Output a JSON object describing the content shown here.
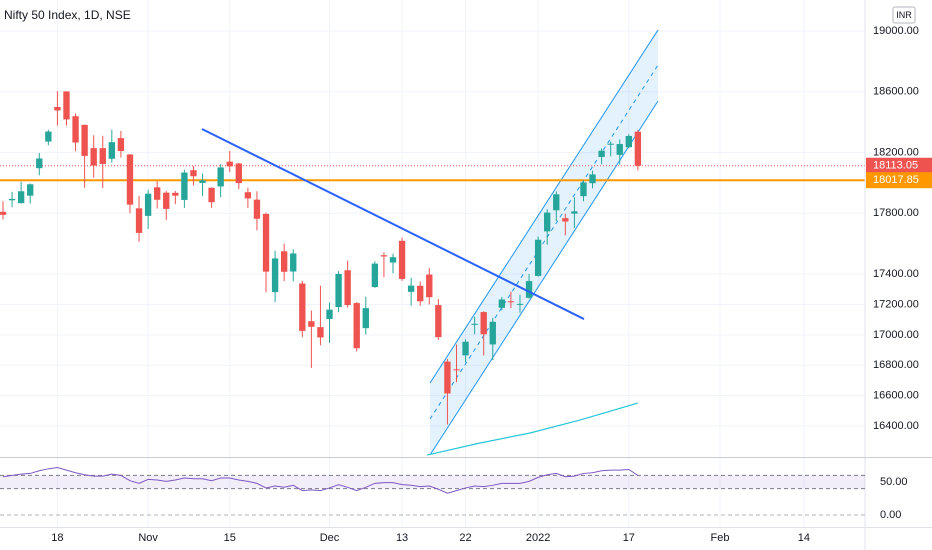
{
  "chart_data": {
    "type": "candlestick",
    "title": "Nifty 50 Index, 1D, NSE",
    "currency": "INR",
    "up_color": "#26a69a",
    "down_color": "#ef5350",
    "open": [
      17810,
      17886,
      17867,
      17916,
      18097,
      18272,
      18500,
      18602,
      18439,
      18382,
      18229,
      18229,
      18159,
      18295,
      18187,
      17833,
      17783,
      17971,
      17936,
      17935,
      17888,
      18084,
      18000,
      17968,
      17977,
      18140,
      18128,
      17939,
      17890,
      17796,
      17281,
      17550,
      17417,
      17338,
      17090,
      17051,
      17104,
      17183,
      17425,
      17209,
      17044,
      17315,
      17524,
      17476,
      17619,
      17283,
      17323,
      17397,
      17196,
      16824,
      16773,
      16865,
      17066,
      17150,
      16937,
      17178,
      17221,
      17202,
      17244,
      17388,
      17681,
      17820,
      17768,
      17798,
      17913,
      17998,
      18171,
      18257,
      18185,
      18235,
      18337
    ],
    "high": [
      17880,
      17941,
      18008,
      17996,
      18197,
      18350,
      18604,
      18604,
      18458,
      18384,
      18314,
      18310,
      18350,
      18342,
      18190,
      17915,
      17954,
      18012,
      17947,
      17947,
      18087,
      18112,
      18061,
      17971,
      18123,
      18210,
      18132,
      17969,
      17945,
      17805,
      17553,
      17600,
      17564,
      17355,
      17160,
      17324,
      17213,
      17420,
      17489,
      17216,
      17251,
      17484,
      17543,
      17534,
      17640,
      17376,
      17351,
      17440,
      17236,
      16841,
      16937,
      16971,
      17119,
      17155,
      17112,
      17250,
      17285,
      17264,
      17400,
      17647,
      17827,
      17944,
      17797,
      17905,
      18017,
      18081,
      18227,
      18272,
      18286,
      18321,
      18350
    ],
    "low": [
      17760,
      17840,
      17864,
      17865,
      18050,
      18248,
      18377,
      18377,
      18209,
      17968,
      18034,
      17966,
      18134,
      18167,
      17800,
      17613,
      17697,
      17832,
      17757,
      17860,
      17836,
      17983,
      17915,
      17836,
      17905,
      18071,
      17959,
      17836,
      17688,
      17280,
      17216,
      17354,
      17351,
      16985,
      16782,
      16931,
      16947,
      17149,
      17180,
      16891,
      17003,
      17308,
      17379,
      17405,
      17355,
      17192,
      17192,
      17200,
      16966,
      16410,
      16688,
      16819,
      17004,
      16864,
      16834,
      17161,
      17176,
      17146,
      17238,
      17383,
      17593,
      17749,
      17655,
      17704,
      17879,
      17964,
      18123,
      18175,
      18120,
      18228,
      18083
    ],
    "close": [
      17790,
      17895,
      17945,
      17991,
      18161,
      18338,
      18477,
      18418,
      18266,
      18178,
      18114,
      18125,
      18268,
      18210,
      17857,
      17671,
      17929,
      17889,
      17829,
      17916,
      18068,
      18044,
      18017,
      17873,
      18102,
      18109,
      17999,
      17898,
      17764,
      17416,
      17503,
      17415,
      17536,
      17026,
      17053,
      16983,
      17166,
      17401,
      17196,
      16912,
      17176,
      17469,
      17516,
      17511,
      17368,
      17324,
      17221,
      17248,
      16985,
      16614,
      16771,
      16955,
      17073,
      17004,
      17086,
      17233,
      17214,
      17204,
      17354,
      17626,
      17805,
      17925,
      17746,
      17813,
      18003,
      18056,
      18212,
      18258,
      18256,
      18309,
      18113
    ],
    "xlim": [
      -0.33,
      95.04
    ],
    "ylim": [
      16196,
      19204
    ],
    "xticks": [
      {
        "value": 6,
        "label": "18"
      },
      {
        "value": 16,
        "label": "Nov"
      },
      {
        "value": 25,
        "label": "15"
      },
      {
        "value": 36,
        "label": "Dec"
      },
      {
        "value": 44,
        "label": "13"
      },
      {
        "value": 51,
        "label": "22"
      },
      {
        "value": 59,
        "label": "2022"
      },
      {
        "value": 69,
        "label": "17"
      },
      {
        "value": 79.05,
        "label": "Feb"
      },
      {
        "value": 88.3,
        "label": "14"
      }
    ],
    "yticks": [
      {
        "value": 19000,
        "label": "19000.00"
      },
      {
        "value": 18600,
        "label": "18600.00"
      },
      {
        "value": 18200,
        "label": "18200.00"
      },
      {
        "value": 17800,
        "label": "17800.00"
      },
      {
        "value": 17400,
        "label": "17400.00"
      },
      {
        "value": 17200,
        "label": "17200.00"
      },
      {
        "value": 17000,
        "label": "17000.00"
      },
      {
        "value": 16800,
        "label": "16800.00"
      },
      {
        "value": 16600,
        "label": "16600.00"
      },
      {
        "value": 16400,
        "label": "16400.00"
      }
    ],
    "price_lines": [
      {
        "value": 18113.05,
        "color": "#ef5350",
        "style": "dotted"
      },
      {
        "value": 18017.85,
        "color": "#ff9800",
        "style": "solid"
      }
    ],
    "trendline": {
      "x": [
        21.94,
        64.06
      ],
      "y": [
        18355,
        17104
      ],
      "color": "#2962ff"
    },
    "channel": {
      "x": [
        47.08,
        72.22
      ],
      "upper": [
        16683,
        19007
      ],
      "middle": [
        16446,
        18776
      ],
      "lower": [
        16209,
        18539
      ],
      "color": "#2196f3"
    },
    "moving_average": {
      "x": [
        46.75,
        52.6,
        58.1,
        63.6,
        70
      ],
      "values": [
        16209,
        16288,
        16354,
        16439,
        16551
      ],
      "color": "#26c6da"
    },
    "rsi": {
      "values": [
        58,
        60,
        62,
        63,
        67,
        70,
        72,
        68,
        64,
        61,
        59,
        59,
        62,
        60,
        52,
        48,
        54,
        53,
        51,
        53,
        56,
        55,
        55,
        52,
        56,
        56,
        53,
        51,
        48,
        41,
        44,
        42,
        45,
        37,
        38,
        37,
        41,
        46,
        42,
        37,
        42,
        48,
        49,
        49,
        46,
        45,
        43,
        44,
        39,
        33,
        37,
        41,
        44,
        43,
        45,
        48,
        48,
        48,
        51,
        57,
        61,
        63,
        58,
        59,
        63,
        64,
        67,
        68,
        68,
        69,
        60
      ],
      "ylim": [
        -18.2,
        86.4
      ],
      "bands": [
        40,
        60
      ],
      "color": "#7e57c2",
      "yticks": [
        {
          "value": 50,
          "label": "50.00"
        },
        {
          "value": 0,
          "label": "0.00"
        }
      ]
    }
  }
}
